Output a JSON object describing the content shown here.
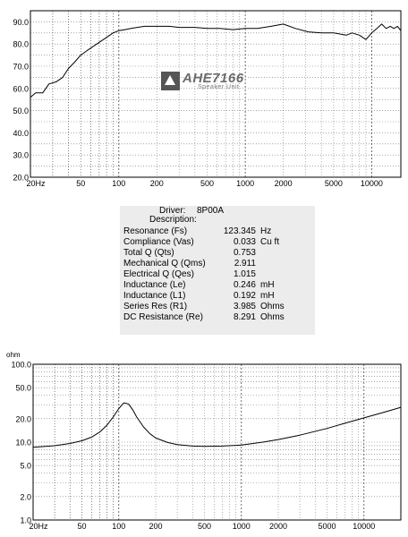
{
  "chart_data": [
    {
      "type": "line",
      "title": "",
      "xlabel": "",
      "ylabel": "",
      "x_scale": "log",
      "y_scale": "linear",
      "xlim": [
        20,
        17000
      ],
      "ylim": [
        20,
        95
      ],
      "x_ticks": [
        20,
        50,
        100,
        200,
        500,
        1000,
        2000,
        5000,
        10000
      ],
      "x_tick_labels": [
        "20Hz",
        "50",
        "100",
        "200",
        "500",
        "1000",
        "2000",
        "5000",
        "10000"
      ],
      "y_ticks": [
        20,
        30,
        40,
        50,
        60,
        70,
        80,
        90
      ],
      "y_tick_labels": [
        "20.0",
        "30.0",
        "40.0",
        "50.0",
        "60.0",
        "70.0",
        "80.0",
        "90.0"
      ],
      "grid": true,
      "series": [
        {
          "color": "#000000",
          "x": [
            20,
            22,
            25,
            28,
            32,
            36,
            40,
            45,
            50,
            56,
            63,
            71,
            80,
            90,
            100,
            112,
            125,
            140,
            160,
            180,
            200,
            250,
            300,
            400,
            500,
            630,
            800,
            1000,
            1250,
            1600,
            2000,
            2500,
            3150,
            4000,
            5000,
            6300,
            7000,
            8000,
            9000,
            10000,
            11000,
            12000,
            13000,
            14000,
            15000,
            16000,
            17000
          ],
          "y": [
            56,
            58,
            58,
            62,
            63,
            65,
            69,
            72,
            75,
            77,
            79,
            81,
            83,
            85,
            86,
            86.5,
            87,
            87.5,
            88,
            88,
            88,
            88,
            87.5,
            87.5,
            87,
            87,
            86.5,
            87,
            87,
            88,
            89,
            87,
            85.5,
            85,
            85,
            84,
            85,
            84,
            82,
            85,
            87,
            89,
            87,
            88,
            87,
            88,
            86
          ]
        }
      ]
    },
    {
      "type": "line",
      "title": "",
      "xlabel": "",
      "ylabel": "ohm",
      "x_scale": "log",
      "y_scale": "log",
      "xlim": [
        20,
        20000
      ],
      "ylim": [
        1,
        100
      ],
      "x_ticks": [
        20,
        50,
        100,
        200,
        500,
        1000,
        2000,
        5000,
        10000
      ],
      "x_tick_labels": [
        "20Hz",
        "50",
        "100",
        "200",
        "500",
        "1000",
        "2000",
        "5000",
        "10000"
      ],
      "y_ticks": [
        1,
        2,
        5,
        10,
        20,
        50,
        100
      ],
      "y_tick_labels": [
        "1.0",
        "2.0",
        "5.0",
        "10.0",
        "20.0",
        "50.0",
        "100.0"
      ],
      "grid": true,
      "series": [
        {
          "color": "#000000",
          "x": [
            20,
            30,
            40,
            50,
            60,
            70,
            80,
            90,
            100,
            110,
            120,
            130,
            140,
            160,
            180,
            200,
            250,
            300,
            400,
            500,
            700,
            1000,
            1500,
            2000,
            3000,
            5000,
            7000,
            10000,
            15000,
            20000
          ],
          "y": [
            8.6,
            9.0,
            9.6,
            10.4,
            11.6,
            13.5,
            16.5,
            21,
            27,
            32,
            31,
            26,
            21,
            15.5,
            12.8,
            11.3,
            9.9,
            9.3,
            8.9,
            8.8,
            8.9,
            9.2,
            10,
            10.8,
            12.3,
            15,
            17.5,
            20.5,
            24.5,
            28
          ]
        }
      ]
    }
  ],
  "logo": {
    "name": "AHE7166",
    "sub": "Speaker Unit"
  },
  "specs": {
    "driver_label": "Driver:",
    "driver_value": "8P00A",
    "description_label": "Description:",
    "rows": [
      {
        "label": "Resonance (Fs)",
        "value": "123.345",
        "unit": "Hz"
      },
      {
        "label": "Compliance (Vas)",
        "value": "0.033",
        "unit": "Cu ft"
      },
      {
        "label": "Total Q (Qts)",
        "value": "0.753",
        "unit": ""
      },
      {
        "label": "Mechanical Q (Qms)",
        "value": "2.911",
        "unit": ""
      },
      {
        "label": "Electrical Q (Qes)",
        "value": "1.015",
        "unit": ""
      },
      {
        "label": "Inductance (Le)",
        "value": "0.246",
        "unit": "mH"
      },
      {
        "label": "Inductance (L1)",
        "value": "0.192",
        "unit": "mH"
      },
      {
        "label": "Series Res (R1)",
        "value": "3.985",
        "unit": "Ohms"
      },
      {
        "label": "DC Resistance (Re)",
        "value": "8.291",
        "unit": "Ohms"
      }
    ]
  }
}
